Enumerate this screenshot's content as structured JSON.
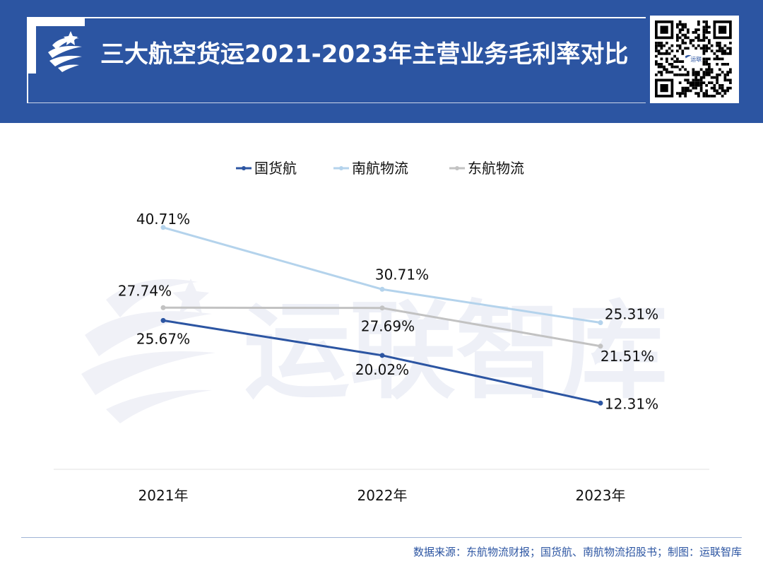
{
  "header": {
    "title": "三大航空货运2021-2023年主营业务毛利率对比",
    "brand_color": "#2c55a2"
  },
  "icons": {
    "logo": "swirl-logo-icon",
    "qr": "qr-code-icon",
    "watermark": "yunlian-watermark"
  },
  "watermark": {
    "text": "运联智库"
  },
  "qr": {
    "center_text": "运联"
  },
  "chart_data": {
    "type": "line",
    "categories": [
      "2021年",
      "2022年",
      "2023年"
    ],
    "series": [
      {
        "name": "国货航",
        "values": [
          25.67,
          20.02,
          12.31
        ],
        "labels": [
          "25.67%",
          "20.02%",
          "12.31%"
        ],
        "color": "#2c55a2"
      },
      {
        "name": "南航物流",
        "values": [
          40.71,
          30.71,
          25.31
        ],
        "labels": [
          "40.71%",
          "30.71%",
          "25.31%"
        ],
        "color": "#b4d3ec"
      },
      {
        "name": "东航物流",
        "values": [
          27.74,
          27.69,
          21.51
        ],
        "labels": [
          "27.74%",
          "27.69%",
          "21.51%"
        ],
        "color": "#c2c2c2"
      }
    ],
    "ylim": [
      0,
      48
    ],
    "grid": false,
    "legend": "top-center",
    "unit": "%"
  },
  "footer": {
    "source": "数据来源：东航物流财报；国货航、南航物流招股书；制图：运联智库"
  }
}
